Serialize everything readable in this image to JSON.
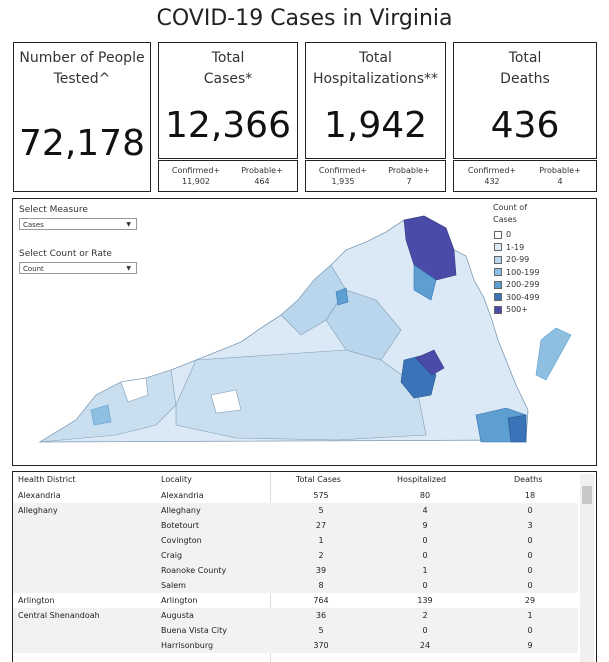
{
  "title": "COVID-19 Cases in Virginia",
  "kpis": {
    "tested": {
      "label_line1": "Number of People",
      "label_line2": "Tested^",
      "value": "72,178"
    },
    "cases": {
      "label_line1": "Total",
      "label_line2": "Cases*",
      "value": "12,366",
      "confirmed_label": "Confirmed+",
      "confirmed_value": "11,902",
      "probable_label": "Probable+",
      "probable_value": "464"
    },
    "hosp": {
      "label_line1": "Total",
      "label_line2": "Hospitalizations**",
      "value": "1,942",
      "confirmed_label": "Confirmed+",
      "confirmed_value": "1,935",
      "probable_label": "Probable+",
      "probable_value": "7"
    },
    "deaths": {
      "label_line1": "Total",
      "label_line2": "Deaths",
      "value": "436",
      "confirmed_label": "Confirmed+",
      "confirmed_value": "432",
      "probable_label": "Probable+",
      "probable_value": "4"
    }
  },
  "controls": {
    "measure_label": "Select Measure",
    "measure_value": "Cases",
    "count_rate_label": "Select Count or Rate",
    "count_rate_value": "Count"
  },
  "legend": {
    "title_line1": "Count of",
    "title_line2": "Cases",
    "items": [
      {
        "label": "0",
        "color": "#ffffff"
      },
      {
        "label": "1-19",
        "color": "#dbe9f6"
      },
      {
        "label": "20-99",
        "color": "#b9d6ec"
      },
      {
        "label": "100-199",
        "color": "#8fbfe0"
      },
      {
        "label": "200-299",
        "color": "#5c9fd0"
      },
      {
        "label": "300-499",
        "color": "#3a73b8"
      },
      {
        "label": "500+",
        "color": "#4a4aa8"
      }
    ]
  },
  "table": {
    "headers": [
      "Health District",
      "Locality",
      "Total Cases",
      "Hospitalized",
      "Deaths"
    ],
    "rows": [
      {
        "district": "Alexandria",
        "locality": "Alexandria",
        "cases": "575",
        "hosp": "80",
        "deaths": "18"
      },
      {
        "district": "Alleghany",
        "locality": "Alleghany",
        "cases": "5",
        "hosp": "4",
        "deaths": "0"
      },
      {
        "district": "",
        "locality": "Botetourt",
        "cases": "27",
        "hosp": "9",
        "deaths": "3"
      },
      {
        "district": "",
        "locality": "Covington",
        "cases": "1",
        "hosp": "0",
        "deaths": "0"
      },
      {
        "district": "",
        "locality": "Craig",
        "cases": "2",
        "hosp": "0",
        "deaths": "0"
      },
      {
        "district": "",
        "locality": "Roanoke County",
        "cases": "39",
        "hosp": "1",
        "deaths": "0"
      },
      {
        "district": "",
        "locality": "Salem",
        "cases": "8",
        "hosp": "0",
        "deaths": "0"
      },
      {
        "district": "Arlington",
        "locality": "Arlington",
        "cases": "764",
        "hosp": "139",
        "deaths": "29"
      },
      {
        "district": "Central Shenandoah",
        "locality": "Augusta",
        "cases": "36",
        "hosp": "2",
        "deaths": "1"
      },
      {
        "district": "",
        "locality": "Buena Vista City",
        "cases": "5",
        "hosp": "0",
        "deaths": "0"
      },
      {
        "district": "",
        "locality": "Harrisonburg",
        "cases": "370",
        "hosp": "24",
        "deaths": "9"
      }
    ]
  }
}
